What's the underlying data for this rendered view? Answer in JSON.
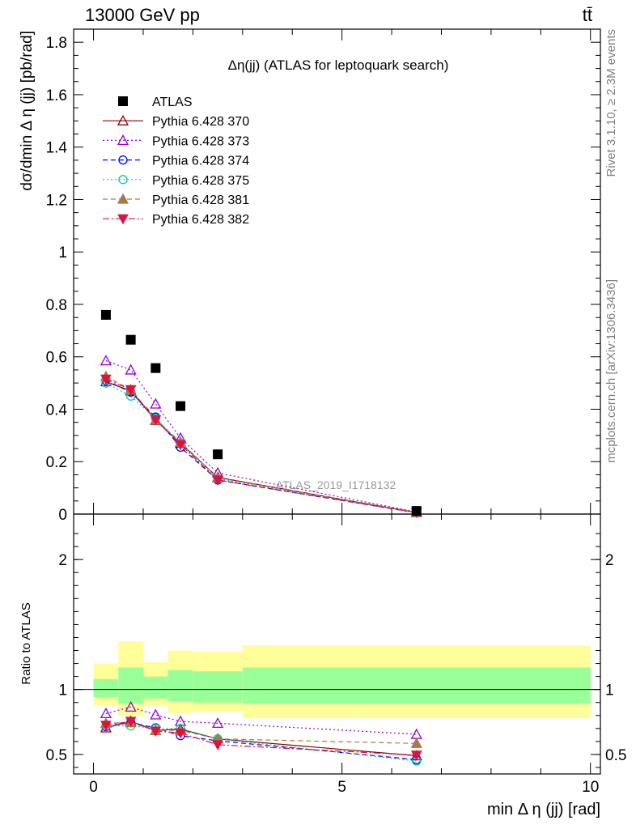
{
  "header": {
    "energy_label": "13000 GeV pp",
    "process_label": "tt̄"
  },
  "side_labels": {
    "rivet": "Rivet 3.1.10, ≥ 2.3M events",
    "source": "mcplots.cern.ch [arXiv:1306.3436]"
  },
  "watermark": "ATLAS_2019_I1718132",
  "chart_data": [
    {
      "type": "scatter",
      "title": "Δη(jj) (ATLAS for leptoquark search)",
      "ylabel": "dσ/dmin Δ η (jj) [pb/rad]",
      "xlim": [
        -0.4,
        10.2
      ],
      "ylim": [
        0,
        1.85
      ],
      "yticks": [
        "0",
        "0.2",
        "0.4",
        "0.6",
        "0.8",
        "1",
        "1.2",
        "1.4",
        "1.6",
        "1.8"
      ],
      "legend": "top-left",
      "data": {
        "name": "ATLAS",
        "x": [
          0.25,
          0.75,
          1.25,
          1.75,
          2.5,
          6.5
        ],
        "y": [
          0.76,
          0.665,
          0.557,
          0.412,
          0.228,
          0.012
        ]
      },
      "series": [
        {
          "name": "Pythia 6.428 370",
          "color": "#8b0000",
          "marker": "triangle-open",
          "dash": "solid",
          "x": [
            0.25,
            0.75,
            1.25,
            1.75,
            2.5,
            6.5
          ],
          "y": [
            0.505,
            0.47,
            0.358,
            0.27,
            0.14,
            0.006
          ]
        },
        {
          "name": "Pythia 6.428 373",
          "color": "#9400d3",
          "marker": "triangle-open",
          "dash": "dot",
          "x": [
            0.25,
            0.75,
            1.25,
            1.75,
            2.5,
            6.5
          ],
          "y": [
            0.585,
            0.55,
            0.42,
            0.29,
            0.157,
            0.008
          ]
        },
        {
          "name": "Pythia 6.428 374",
          "color": "#0000ee",
          "marker": "circle-open",
          "dash": "dash",
          "x": [
            0.25,
            0.75,
            1.25,
            1.75,
            2.5,
            6.5
          ],
          "y": [
            0.51,
            0.465,
            0.37,
            0.255,
            0.13,
            0.005
          ]
        },
        {
          "name": "Pythia 6.428 375",
          "color": "#00ccaa",
          "marker": "circle-open",
          "dash": "dot",
          "x": [
            0.25,
            0.75,
            1.25,
            1.75,
            2.5,
            6.5
          ],
          "y": [
            0.5,
            0.45,
            0.365,
            0.27,
            0.135,
            0.005
          ]
        },
        {
          "name": "Pythia 6.428 381",
          "color": "#a67c45",
          "marker": "triangle",
          "dash": "dash",
          "x": [
            0.25,
            0.75,
            1.25,
            1.75,
            2.5,
            6.5
          ],
          "y": [
            0.525,
            0.475,
            0.36,
            0.275,
            0.138,
            0.007
          ]
        },
        {
          "name": "Pythia 6.428 382",
          "color": "#dd1144",
          "marker": "triangle-down",
          "dash": "dashdot",
          "x": [
            0.25,
            0.75,
            1.25,
            1.75,
            2.5,
            6.5
          ],
          "y": [
            0.515,
            0.475,
            0.36,
            0.265,
            0.13,
            0.006
          ]
        }
      ]
    },
    {
      "type": "line",
      "ylabel": "Ratio to ATLAS",
      "xlabel": "min Δ η (jj) [rad]",
      "xlim": [
        -0.4,
        10.2
      ],
      "ylim": [
        0.35,
        2.35
      ],
      "xticks": [
        "0",
        "5",
        "10"
      ],
      "yticks": [
        "0.5",
        "1",
        "2"
      ],
      "reference": 1,
      "bands": [
        {
          "x0": 0.0,
          "x1": 0.5,
          "yellow": [
            0.88,
            1.2
          ],
          "green": [
            0.94,
            1.08
          ]
        },
        {
          "x0": 0.5,
          "x1": 1.0,
          "yellow": [
            0.8,
            1.37
          ],
          "green": [
            0.89,
            1.17
          ]
        },
        {
          "x0": 1.0,
          "x1": 1.5,
          "yellow": [
            0.88,
            1.21
          ],
          "green": [
            0.93,
            1.1
          ]
        },
        {
          "x0": 1.5,
          "x1": 2.0,
          "yellow": [
            0.82,
            1.3
          ],
          "green": [
            0.91,
            1.15
          ]
        },
        {
          "x0": 2.0,
          "x1": 3.0,
          "yellow": [
            0.83,
            1.29
          ],
          "green": [
            0.9,
            1.14
          ]
        },
        {
          "x0": 3.0,
          "x1": 10.0,
          "yellow": [
            0.78,
            1.34
          ],
          "green": [
            0.89,
            1.17
          ]
        }
      ],
      "series": [
        {
          "name": "Pythia 6.428 370",
          "color": "#8b0000",
          "marker": "triangle-open",
          "dash": "solid",
          "x": [
            0.25,
            0.75,
            1.25,
            1.75,
            2.5,
            6.5
          ],
          "y": [
            0.705,
            0.755,
            0.685,
            0.695,
            0.62,
            0.49
          ]
        },
        {
          "name": "Pythia 6.428 373",
          "color": "#9400d3",
          "marker": "triangle-open",
          "dash": "dot",
          "x": [
            0.25,
            0.75,
            1.25,
            1.75,
            2.5,
            6.5
          ],
          "y": [
            0.815,
            0.865,
            0.805,
            0.755,
            0.74,
            0.655
          ]
        },
        {
          "name": "Pythia 6.428 374",
          "color": "#0000ee",
          "marker": "circle-open",
          "dash": "dash",
          "x": [
            0.25,
            0.75,
            1.25,
            1.75,
            2.5,
            6.5
          ],
          "y": [
            0.715,
            0.745,
            0.705,
            0.645,
            0.605,
            0.46
          ]
        },
        {
          "name": "Pythia 6.428 375",
          "color": "#00ccaa",
          "marker": "circle-open",
          "dash": "dot",
          "x": [
            0.25,
            0.75,
            1.25,
            1.75,
            2.5,
            6.5
          ],
          "y": [
            0.72,
            0.72,
            0.7,
            0.7,
            0.62,
            0.45
          ]
        },
        {
          "name": "Pythia 6.428 381",
          "color": "#a67c45",
          "marker": "triangle",
          "dash": "dash",
          "x": [
            0.25,
            0.75,
            1.25,
            1.75,
            2.5,
            6.5
          ],
          "y": [
            0.74,
            0.745,
            0.685,
            0.685,
            0.62,
            0.585
          ]
        },
        {
          "name": "Pythia 6.428 382",
          "color": "#dd1144",
          "marker": "triangle-down",
          "dash": "dashdot",
          "x": [
            0.25,
            0.75,
            1.25,
            1.75,
            2.5,
            6.5
          ],
          "y": [
            0.725,
            0.755,
            0.68,
            0.665,
            0.575,
            0.495
          ]
        }
      ]
    }
  ]
}
